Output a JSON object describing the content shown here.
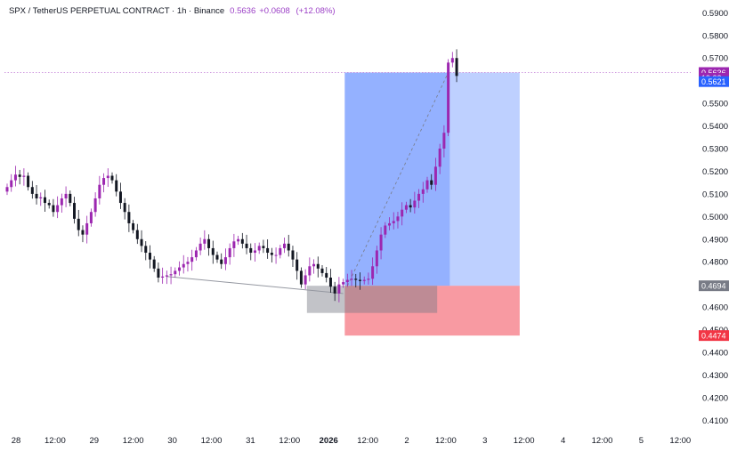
{
  "header": {
    "symbol": "SPX / TetherUS PERPETUAL CONTRACT · 1h · Binance",
    "last_price": "0.5636",
    "change": "+0.0608",
    "change_pct": "(+12.08%)"
  },
  "chart_data": {
    "type": "candlestick",
    "title": "SPX / TetherUS PERPETUAL CONTRACT · 1h · Binance",
    "y_axis": {
      "min": 0.405,
      "max": 0.5925,
      "side": "right",
      "ticks": [
        0.59,
        0.58,
        0.57,
        0.56,
        0.55,
        0.54,
        0.53,
        0.52,
        0.51,
        0.5,
        0.49,
        0.48,
        0.47,
        0.46,
        0.45,
        0.44,
        0.43,
        0.42,
        0.41
      ],
      "tick_labels": [
        "0.5900",
        "0.5800",
        "0.5700",
        "0.5600",
        "0.5500",
        "0.5400",
        "0.5300",
        "0.5200",
        "0.5100",
        "0.5000",
        "0.4900",
        "0.4800",
        "0.4700",
        "0.4600",
        "0.4500",
        "0.4400",
        "0.4300",
        "0.4200",
        "0.4100"
      ]
    },
    "x_axis": {
      "tick_labels": [
        {
          "label": "28",
          "bold": false
        },
        {
          "label": "12:00",
          "bold": false
        },
        {
          "label": "29",
          "bold": false
        },
        {
          "label": "12:00",
          "bold": false
        },
        {
          "label": "30",
          "bold": false
        },
        {
          "label": "12:00",
          "bold": false
        },
        {
          "label": "31",
          "bold": false
        },
        {
          "label": "12:00",
          "bold": false
        },
        {
          "label": "2026",
          "bold": true
        },
        {
          "label": "12:00",
          "bold": false
        },
        {
          "label": "2",
          "bold": false
        },
        {
          "label": "12:00",
          "bold": false
        },
        {
          "label": "3",
          "bold": false
        },
        {
          "label": "12:00",
          "bold": false
        },
        {
          "label": "4",
          "bold": false
        },
        {
          "label": "12:00",
          "bold": false
        },
        {
          "label": "5",
          "bold": false
        },
        {
          "label": "12:00",
          "bold": false
        }
      ]
    },
    "series_close": [
      0.513,
      0.516,
      0.5185,
      0.5175,
      0.518,
      0.513,
      0.51,
      0.508,
      0.5085,
      0.506,
      0.505,
      0.502,
      0.505,
      0.508,
      0.51,
      0.506,
      0.499,
      0.494,
      0.492,
      0.497,
      0.502,
      0.508,
      0.514,
      0.517,
      0.518,
      0.516,
      0.511,
      0.506,
      0.502,
      0.497,
      0.494,
      0.49,
      0.487,
      0.484,
      0.481,
      0.477,
      0.473,
      0.4735,
      0.474,
      0.4745,
      0.476,
      0.4775,
      0.479,
      0.48,
      0.482,
      0.485,
      0.488,
      0.49,
      0.486,
      0.483,
      0.481,
      0.479,
      0.482,
      0.486,
      0.489,
      0.49,
      0.488,
      0.486,
      0.484,
      0.485,
      0.487,
      0.486,
      0.484,
      0.483,
      0.483,
      0.486,
      0.488,
      0.485,
      0.481,
      0.476,
      0.47,
      0.474,
      0.478,
      0.479,
      0.477,
      0.475,
      0.473,
      0.469,
      0.466,
      0.47,
      0.471,
      0.472,
      0.4725,
      0.472,
      0.4715,
      0.472,
      0.4725,
      0.478,
      0.485,
      0.492,
      0.496,
      0.497,
      0.498,
      0.5,
      0.503,
      0.505,
      0.504,
      0.507,
      0.51,
      0.512,
      0.516,
      0.514,
      0.522,
      0.53,
      0.537,
      0.568,
      0.57,
      0.5621
    ],
    "reference_lines": [
      {
        "value": 0.5636,
        "style": "dotted",
        "color": "#c27dd6"
      }
    ],
    "price_tags": [
      {
        "label": "0.5636",
        "value": 0.5636,
        "color": "#9c27b0"
      },
      {
        "label": "19:32",
        "value": 0.5611,
        "color": "#9c27b0"
      },
      {
        "label": "0.5621",
        "value": 0.5596,
        "color": "#2962ff"
      },
      {
        "label": "0.4694",
        "value": 0.4694,
        "color": "#787b86"
      },
      {
        "label": "0.4474",
        "value": 0.4474,
        "color": "#f23645"
      }
    ],
    "drawings": {
      "long_position": {
        "entry": 0.4694,
        "target": 0.5636,
        "stop": 0.4474
      },
      "short_position": {
        "entry": 0.4694,
        "stop": 0.4574
      },
      "trendline": {
        "from": 0.4735,
        "to": 0.466
      }
    }
  }
}
